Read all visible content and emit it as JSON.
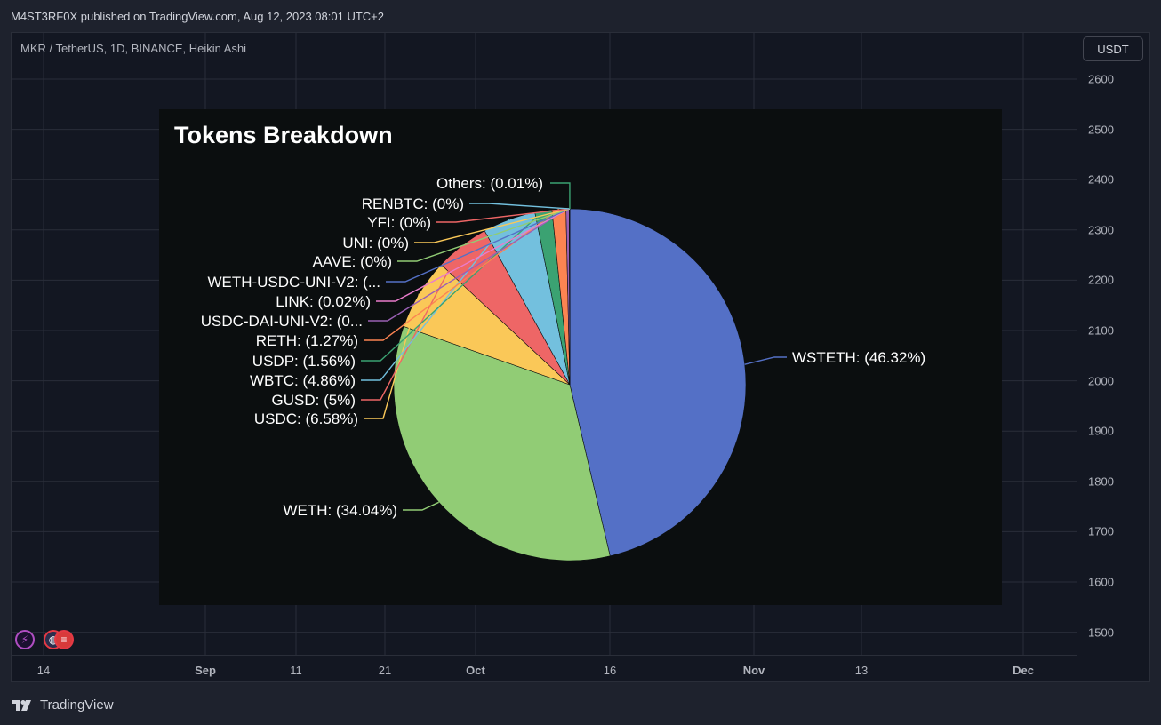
{
  "header": {
    "published_text": "M4ST3RF0X published on TradingView.com, Aug 12, 2023 08:01 UTC+2"
  },
  "symbol": {
    "title": "MKR / TetherUS, 1D, BINANCE, Heikin Ashi"
  },
  "currency": "USDT",
  "price_axis": [
    "2600",
    "2500",
    "2400",
    "2300",
    "2200",
    "2100",
    "2000",
    "1900",
    "1800",
    "1700",
    "1600",
    "1500"
  ],
  "time_axis": [
    {
      "label": "14",
      "bold": false
    },
    {
      "label": "Sep",
      "bold": true
    },
    {
      "label": "11",
      "bold": false
    },
    {
      "label": "21",
      "bold": false
    },
    {
      "label": "Oct",
      "bold": true
    },
    {
      "label": "16",
      "bold": false
    },
    {
      "label": "Nov",
      "bold": true
    },
    {
      "label": "13",
      "bold": false
    },
    {
      "label": "Dec",
      "bold": true
    }
  ],
  "footer": {
    "brand": "TradingView"
  },
  "colors": {
    "background": "#1e222d",
    "pane": "#131722",
    "grid": "#2a2e39",
    "inset": "#0b0e0f"
  },
  "chart_data": {
    "type": "pie",
    "title": "Tokens Breakdown",
    "slices": [
      {
        "label": "WSTETH: (46.32%)",
        "value": 46.32,
        "color": "#5470c6"
      },
      {
        "label": "WETH: (34.04%)",
        "value": 34.04,
        "color": "#91cc75"
      },
      {
        "label": "USDC: (6.58%)",
        "value": 6.58,
        "color": "#fac858"
      },
      {
        "label": "GUSD: (5%)",
        "value": 5.0,
        "color": "#ee6666"
      },
      {
        "label": "WBTC: (4.86%)",
        "value": 4.86,
        "color": "#73c0de"
      },
      {
        "label": "USDP: (1.56%)",
        "value": 1.56,
        "color": "#3ba272"
      },
      {
        "label": "RETH: (1.27%)",
        "value": 1.27,
        "color": "#fc8452"
      },
      {
        "label": "USDC-DAI-UNI-V2: (0...",
        "value": 0.3,
        "color": "#9a60b4"
      },
      {
        "label": "LINK: (0.02%)",
        "value": 0.02,
        "color": "#ea7ccc"
      },
      {
        "label": "WETH-USDC-UNI-V2: (...",
        "value": 0.02,
        "color": "#5470c6"
      },
      {
        "label": "AAVE: (0%)",
        "value": 0.0,
        "color": "#91cc75"
      },
      {
        "label": "UNI: (0%)",
        "value": 0.0,
        "color": "#fac858"
      },
      {
        "label": "YFI: (0%)",
        "value": 0.0,
        "color": "#ee6666"
      },
      {
        "label": "RENBTC: (0%)",
        "value": 0.0,
        "color": "#73c0de"
      },
      {
        "label": "Others: (0.01%)",
        "value": 0.01,
        "color": "#3ba272"
      }
    ]
  }
}
